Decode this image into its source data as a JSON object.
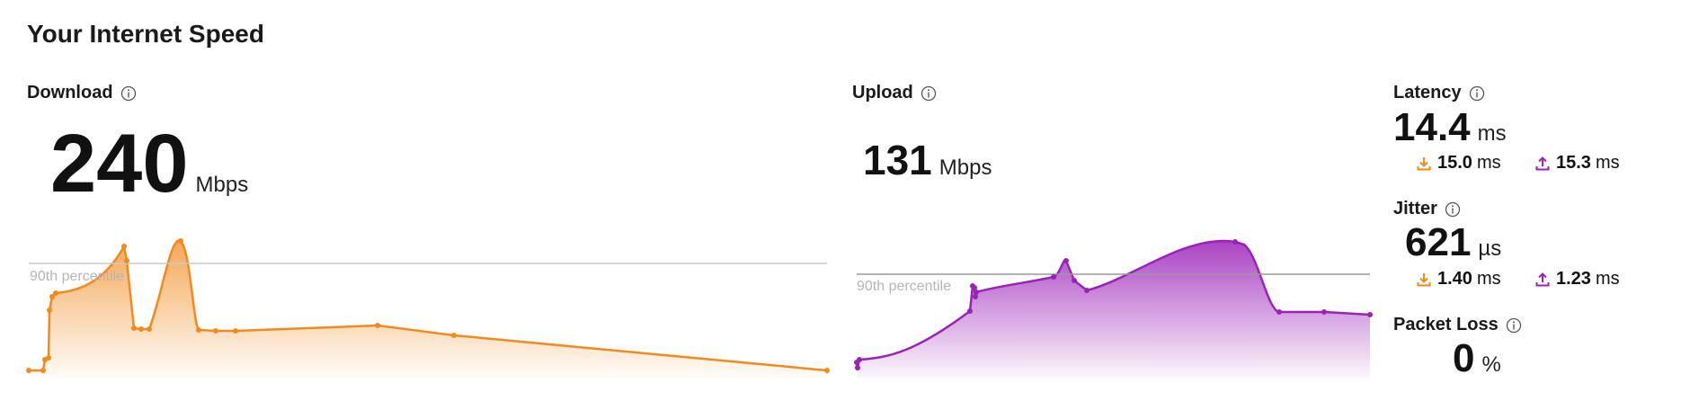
{
  "page": {
    "title": "Your Internet Speed"
  },
  "download": {
    "label": "Download",
    "value": "240",
    "unit": "Mbps",
    "percentile_label": "90th percentile",
    "color": "#f28a1f"
  },
  "upload": {
    "label": "Upload",
    "value": "131",
    "unit": "Mbps",
    "percentile_label": "90th percentile",
    "color": "#9b22b8"
  },
  "latency": {
    "label": "Latency",
    "value": "14.4",
    "unit": "ms",
    "down_value": "15.0",
    "down_unit": "ms",
    "up_value": "15.3",
    "up_unit": "ms"
  },
  "jitter": {
    "label": "Jitter",
    "value": "621",
    "unit": "µs",
    "down_value": "1.40",
    "down_unit": "ms",
    "up_value": "1.23",
    "up_unit": "ms"
  },
  "packet_loss": {
    "label": "Packet Loss",
    "value": "0",
    "unit": "%"
  },
  "icons": {
    "info": "info-icon",
    "download": "download-icon",
    "upload": "upload-icon"
  }
}
